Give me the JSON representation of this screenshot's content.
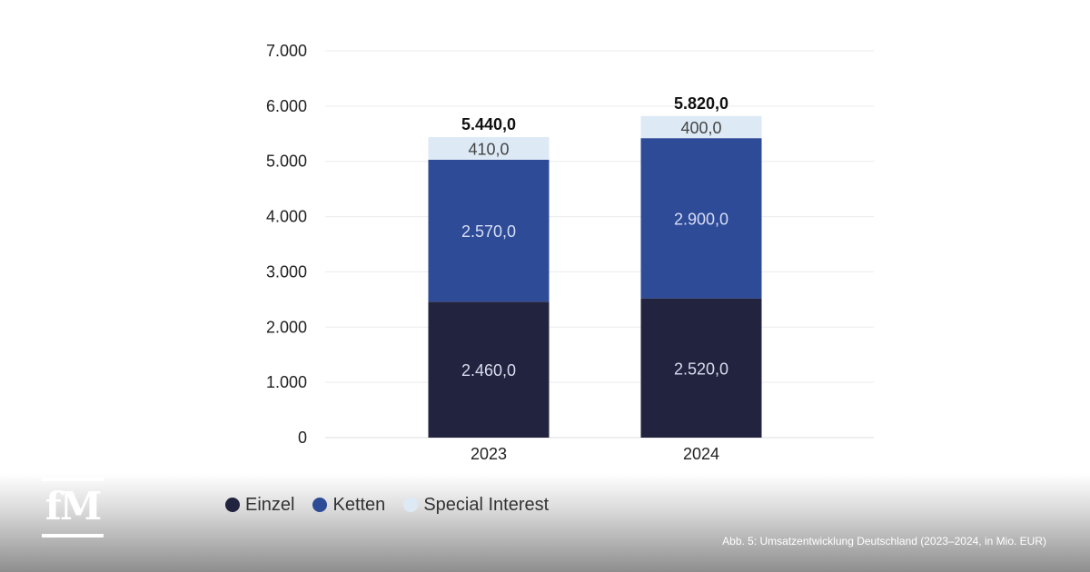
{
  "chart_data": {
    "type": "bar",
    "stacked": true,
    "categories": [
      "2023",
      "2024"
    ],
    "series": [
      {
        "name": "Einzel",
        "values": [
          2460,
          2520
        ],
        "labels": [
          "2.460,0",
          "2.520,0"
        ],
        "color": "#22233f",
        "label_color": "#d8dcee"
      },
      {
        "name": "Ketten",
        "values": [
          2570,
          2900
        ],
        "labels": [
          "2.570,0",
          "2.900,0"
        ],
        "color": "#2e4b98",
        "label_color": "#d8def4"
      },
      {
        "name": "Special Interest",
        "values": [
          410,
          400
        ],
        "labels": [
          "410,0",
          "400,0"
        ],
        "color": "#ddeaf6",
        "label_color": "#444444"
      }
    ],
    "totals": [
      "5.440,0",
      "5.820,0"
    ],
    "y_ticks": [
      "0",
      "1.000",
      "2.000",
      "3.000",
      "4.000",
      "5.000",
      "6.000",
      "7.000"
    ],
    "ylim": [
      0,
      7000
    ],
    "grid": true,
    "legend_position": "bottom-left"
  },
  "caption": "Abb. 5: Umsatzentwicklung Deutschland (2023–2024, in Mio. EUR)",
  "brand": {
    "logo_text": "fM"
  },
  "colors": {
    "grid": "#ececec",
    "axis_line": "#dddddd"
  }
}
